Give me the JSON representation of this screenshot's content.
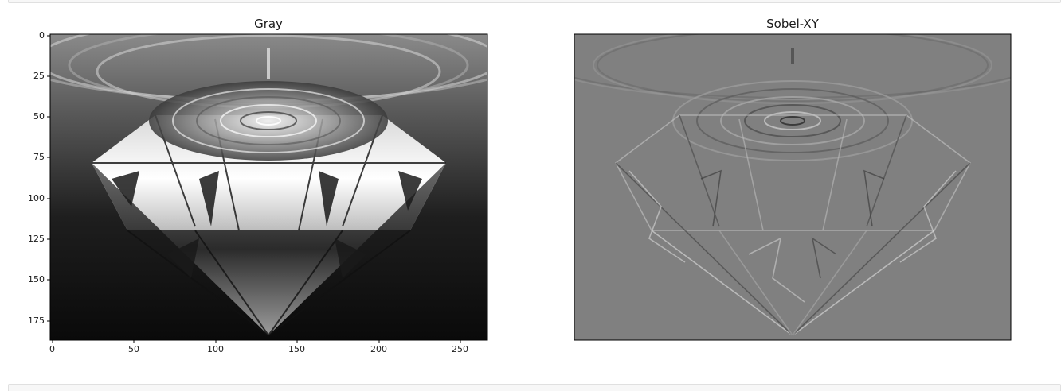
{
  "notebook": {
    "output": {
      "figure": {
        "subplots": [
          {
            "title": "Gray",
            "image_type": "grayscale photograph of a diamond with water ripples",
            "xticks": [
              "0",
              "50",
              "100",
              "150",
              "200",
              "250"
            ],
            "yticks": [
              "0",
              "25",
              "50",
              "75",
              "100",
              "125",
              "150",
              "175"
            ],
            "show_axes": true
          },
          {
            "title": "Sobel-XY",
            "image_type": "Sobel edge-detected image of the diamond",
            "show_axes": false
          }
        ]
      }
    }
  },
  "chart_data": {
    "type": "image",
    "image_size": {
      "width": 265,
      "height": 186
    },
    "xlim": [
      0,
      265
    ],
    "ylim": [
      186,
      0
    ],
    "background_left": "#1c1c1c",
    "background_right": "#808080"
  }
}
